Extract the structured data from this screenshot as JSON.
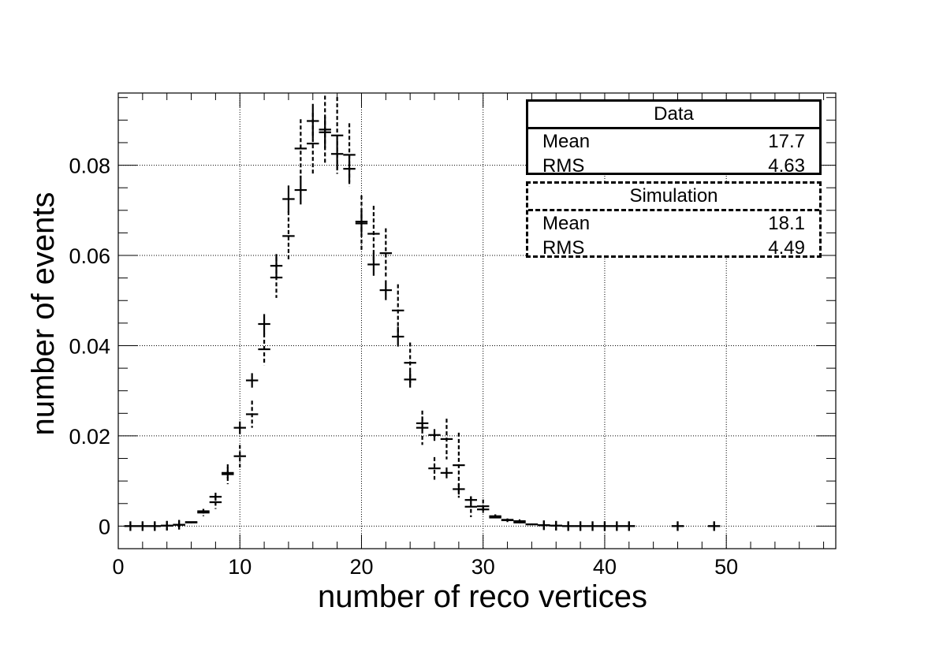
{
  "chart_data": {
    "type": "scatter",
    "xlabel": "number of reco vertices",
    "ylabel": "number of events",
    "xlim": [
      0,
      59
    ],
    "ylim": [
      -0.005,
      0.096
    ],
    "xticks": [
      0,
      10,
      20,
      30,
      40,
      50
    ],
    "yticks": [
      0,
      0.02,
      0.04,
      0.06,
      0.08
    ],
    "xtick_labels": [
      "0",
      "10",
      "20",
      "30",
      "40",
      "50"
    ],
    "ytick_labels": [
      "0",
      "0.02",
      "0.04",
      "0.06",
      "0.08"
    ],
    "grid": true,
    "series": [
      {
        "name": "Data",
        "style": "solid",
        "points": [
          [
            1,
            0.0
          ],
          [
            2,
            0.0
          ],
          [
            3,
            0.0
          ],
          [
            4,
            0.0001
          ],
          [
            5,
            0.0003
          ],
          [
            6,
            0.0009
          ],
          [
            7,
            0.0033
          ],
          [
            8,
            0.0065
          ],
          [
            9,
            0.0118
          ],
          [
            10,
            0.0218
          ],
          [
            11,
            0.0323
          ],
          [
            12,
            0.0448
          ],
          [
            13,
            0.0577
          ],
          [
            14,
            0.0725
          ],
          [
            15,
            0.0745
          ],
          [
            16,
            0.0898
          ],
          [
            17,
            0.0873
          ],
          [
            18,
            0.0825
          ],
          [
            19,
            0.0792
          ],
          [
            20,
            0.0675
          ],
          [
            21,
            0.058
          ],
          [
            22,
            0.0523
          ],
          [
            23,
            0.042
          ],
          [
            24,
            0.0325
          ],
          [
            25,
            0.0228
          ],
          [
            26,
            0.0202
          ],
          [
            27,
            0.0118
          ],
          [
            28,
            0.0082
          ],
          [
            29,
            0.0058
          ],
          [
            30,
            0.0037
          ],
          [
            31,
            0.0022
          ],
          [
            32,
            0.0014
          ],
          [
            33,
            0.0008
          ],
          [
            34,
            0.0004
          ],
          [
            35,
            0.0002
          ],
          [
            36,
            0.0001
          ],
          [
            37,
            0.0
          ],
          [
            38,
            0.0
          ],
          [
            39,
            0.0
          ],
          [
            40,
            0.0
          ],
          [
            41,
            0.0
          ],
          [
            42,
            0.0
          ],
          [
            46,
            0.0
          ],
          [
            49,
            0.0
          ]
        ],
        "errors": [
          0,
          0,
          0,
          0,
          0,
          0.0001,
          0.0005,
          0.0009,
          0.0012,
          0.0014,
          0.0016,
          0.0022,
          0.0026,
          0.003,
          0.0032,
          0.0038,
          0.0035,
          0.0034,
          0.003,
          0.0025,
          0.0025,
          0.0022,
          0.0022,
          0.0018,
          0.0015,
          0.0013,
          0.0012,
          0.0012,
          0.0008,
          0.0005,
          0.0004,
          0.0002,
          0.0002,
          0.0001,
          0,
          0,
          0,
          0,
          0,
          0,
          0,
          0,
          0,
          0
        ]
      },
      {
        "name": "Simulation",
        "style": "dashed",
        "points": [
          [
            1,
            0.0
          ],
          [
            2,
            0.0
          ],
          [
            3,
            0.0
          ],
          [
            4,
            0.0001
          ],
          [
            5,
            0.0003
          ],
          [
            6,
            0.0008
          ],
          [
            7,
            0.003
          ],
          [
            8,
            0.0053
          ],
          [
            9,
            0.0115
          ],
          [
            10,
            0.0155
          ],
          [
            11,
            0.0248
          ],
          [
            12,
            0.0392
          ],
          [
            13,
            0.0551
          ],
          [
            14,
            0.0643
          ],
          [
            15,
            0.0837
          ],
          [
            16,
            0.0848
          ],
          [
            17,
            0.0879
          ],
          [
            18,
            0.0866
          ],
          [
            19,
            0.0823
          ],
          [
            20,
            0.0671
          ],
          [
            21,
            0.0648
          ],
          [
            22,
            0.0605
          ],
          [
            23,
            0.0478
          ],
          [
            24,
            0.0362
          ],
          [
            25,
            0.0218
          ],
          [
            26,
            0.0128
          ],
          [
            27,
            0.0193
          ],
          [
            28,
            0.0135
          ],
          [
            29,
            0.0043
          ],
          [
            30,
            0.0044
          ],
          [
            31,
            0.0019
          ],
          [
            32,
            0.0013
          ],
          [
            33,
            0.0011
          ],
          [
            34,
            0.0004
          ],
          [
            35,
            0.0002
          ],
          [
            36,
            0.0001
          ],
          [
            37,
            0.0
          ],
          [
            38,
            0.0
          ],
          [
            39,
            0.0
          ],
          [
            40,
            0.0
          ],
          [
            41,
            0.0
          ],
          [
            42,
            0.0
          ],
          [
            46,
            0.0
          ],
          [
            49,
            0.0
          ]
        ],
        "errors": [
          0,
          0,
          0,
          0,
          0,
          0.0002,
          0.0008,
          0.0015,
          0.0022,
          0.0025,
          0.003,
          0.0035,
          0.0045,
          0.0055,
          0.0065,
          0.0068,
          0.0075,
          0.0085,
          0.007,
          0.0062,
          0.0062,
          0.0055,
          0.0058,
          0.0045,
          0.0038,
          0.0025,
          0.0045,
          0.0072,
          0.0023,
          0.0015,
          0.0007,
          0.0004,
          0.0004,
          0.0002,
          0,
          0,
          0,
          0,
          0,
          0,
          0,
          0,
          0,
          0
        ]
      }
    ]
  },
  "stats": {
    "data": {
      "title": "Data",
      "mean_label": "Mean",
      "mean": "17.7",
      "rms_label": "RMS",
      "rms": "4.63"
    },
    "simulation": {
      "title": "Simulation",
      "mean_label": "Mean",
      "mean": "18.1",
      "rms_label": "RMS",
      "rms": "4.49"
    }
  }
}
